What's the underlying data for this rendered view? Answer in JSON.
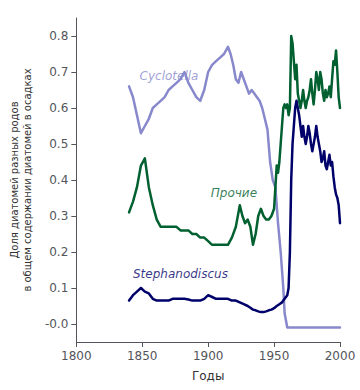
{
  "chart_data": {
    "type": "line",
    "xlabel": "Годы",
    "ylabel": "Доля диатомей разных родов\nв общем содержании диатомей в осадках",
    "xlim": [
      1800,
      2000
    ],
    "ylim": [
      -0.05,
      0.85
    ],
    "xticks": [
      1800,
      1850,
      1900,
      1950,
      2000
    ],
    "yticks": [
      {
        "value": 0.0,
        "label": "-0.0"
      },
      0.1,
      0.2,
      0.3,
      0.4,
      0.5,
      0.6,
      0.7,
      0.8
    ],
    "grid": false,
    "series": [
      {
        "color": "#8888cc",
        "x": [
          1840,
          1843,
          1846,
          1849,
          1852,
          1855,
          1858,
          1861,
          1864,
          1867,
          1870,
          1873,
          1876,
          1879,
          1882,
          1885,
          1888,
          1891,
          1894,
          1897,
          1900,
          1903,
          1906,
          1909,
          1912,
          1915,
          1917,
          1919,
          1921,
          1923,
          1925,
          1927,
          1929,
          1931,
          1933,
          1935,
          1937,
          1939,
          1941,
          1943,
          1945,
          1947,
          1949,
          1951,
          1953,
          1955,
          1957,
          1958,
          1960,
          1965,
          1970,
          1975,
          1980,
          1985,
          1990,
          1995,
          2000
        ],
        "values": [
          0.66,
          0.63,
          0.58,
          0.53,
          0.55,
          0.57,
          0.6,
          0.61,
          0.62,
          0.63,
          0.65,
          0.66,
          0.67,
          0.68,
          0.7,
          0.67,
          0.65,
          0.63,
          0.62,
          0.65,
          0.7,
          0.72,
          0.73,
          0.74,
          0.75,
          0.77,
          0.75,
          0.72,
          0.68,
          0.67,
          0.7,
          0.68,
          0.66,
          0.64,
          0.65,
          0.64,
          0.63,
          0.62,
          0.6,
          0.57,
          0.54,
          0.45,
          0.4,
          0.38,
          0.28,
          0.2,
          0.1,
          0.03,
          -0.01,
          -0.01,
          -0.01,
          -0.01,
          -0.01,
          -0.01,
          -0.01,
          -0.01,
          -0.01
        ]
      },
      {
        "color": "#006030",
        "x": [
          1840,
          1843,
          1846,
          1849,
          1852,
          1855,
          1858,
          1861,
          1864,
          1867,
          1870,
          1873,
          1876,
          1879,
          1882,
          1885,
          1888,
          1891,
          1894,
          1897,
          1900,
          1903,
          1906,
          1909,
          1912,
          1915,
          1918,
          1921,
          1924,
          1926,
          1928,
          1930,
          1932,
          1934,
          1936,
          1938,
          1940,
          1942,
          1944,
          1946,
          1948,
          1950,
          1951,
          1952,
          1953,
          1954,
          1955,
          1956,
          1957,
          1958,
          1959,
          1960,
          1961,
          1962,
          1963,
          1964,
          1965,
          1966,
          1967,
          1968,
          1969,
          1970,
          1971,
          1972,
          1973,
          1974,
          1975,
          1976,
          1977,
          1978,
          1979,
          1980,
          1981,
          1982,
          1983,
          1984,
          1985,
          1986,
          1987,
          1988,
          1989,
          1990,
          1991,
          1992,
          1993,
          1994,
          1995,
          1996,
          1997,
          1998,
          1999,
          2000
        ],
        "values": [
          0.31,
          0.34,
          0.38,
          0.44,
          0.46,
          0.38,
          0.33,
          0.29,
          0.27,
          0.27,
          0.27,
          0.27,
          0.27,
          0.26,
          0.26,
          0.26,
          0.25,
          0.25,
          0.24,
          0.24,
          0.23,
          0.22,
          0.22,
          0.22,
          0.22,
          0.22,
          0.24,
          0.27,
          0.33,
          0.3,
          0.28,
          0.29,
          0.27,
          0.22,
          0.25,
          0.3,
          0.32,
          0.3,
          0.29,
          0.29,
          0.3,
          0.32,
          0.38,
          0.44,
          0.42,
          0.45,
          0.5,
          0.55,
          0.6,
          0.61,
          0.6,
          0.61,
          0.58,
          0.6,
          0.8,
          0.78,
          0.73,
          0.68,
          0.72,
          0.64,
          0.62,
          0.6,
          0.62,
          0.65,
          0.62,
          0.6,
          0.62,
          0.63,
          0.65,
          0.68,
          0.64,
          0.61,
          0.65,
          0.7,
          0.68,
          0.65,
          0.7,
          0.68,
          0.64,
          0.62,
          0.65,
          0.63,
          0.64,
          0.66,
          0.63,
          0.68,
          0.73,
          0.72,
          0.76,
          0.7,
          0.63,
          0.6
        ]
      },
      {
        "color": "#00006a",
        "x": [
          1840,
          1843,
          1846,
          1849,
          1852,
          1855,
          1858,
          1861,
          1864,
          1867,
          1870,
          1873,
          1876,
          1879,
          1882,
          1885,
          1888,
          1891,
          1894,
          1897,
          1900,
          1903,
          1906,
          1909,
          1912,
          1915,
          1918,
          1921,
          1924,
          1927,
          1930,
          1932,
          1934,
          1936,
          1938,
          1940,
          1942,
          1944,
          1946,
          1948,
          1950,
          1952,
          1954,
          1956,
          1957,
          1958,
          1959,
          1960,
          1961,
          1962,
          1963,
          1964,
          1965,
          1966,
          1967,
          1968,
          1969,
          1970,
          1971,
          1972,
          1973,
          1974,
          1975,
          1976,
          1977,
          1978,
          1979,
          1980,
          1981,
          1982,
          1983,
          1984,
          1985,
          1986,
          1987,
          1988,
          1989,
          1990,
          1991,
          1992,
          1993,
          1994,
          1995,
          1996,
          1997,
          1998,
          1999,
          2000
        ],
        "values": [
          0.065,
          0.08,
          0.09,
          0.1,
          0.09,
          0.085,
          0.07,
          0.065,
          0.065,
          0.065,
          0.065,
          0.07,
          0.07,
          0.07,
          0.07,
          0.068,
          0.065,
          0.065,
          0.065,
          0.07,
          0.08,
          0.075,
          0.07,
          0.07,
          0.07,
          0.07,
          0.065,
          0.065,
          0.06,
          0.055,
          0.05,
          0.045,
          0.04,
          0.038,
          0.035,
          0.033,
          0.033,
          0.035,
          0.038,
          0.04,
          0.044,
          0.05,
          0.055,
          0.06,
          0.065,
          0.07,
          0.075,
          0.08,
          0.1,
          0.2,
          0.4,
          0.5,
          0.55,
          0.6,
          0.62,
          0.6,
          0.58,
          0.55,
          0.52,
          0.55,
          0.52,
          0.5,
          0.52,
          0.55,
          0.53,
          0.5,
          0.48,
          0.5,
          0.52,
          0.55,
          0.52,
          0.5,
          0.48,
          0.45,
          0.46,
          0.48,
          0.44,
          0.43,
          0.45,
          0.47,
          0.44,
          0.45,
          0.41,
          0.38,
          0.36,
          0.35,
          0.33,
          0.28
        ]
      }
    ],
    "annotations": [
      {
        "text": "Cyclotella",
        "x": 1848,
        "y": 0.69,
        "color": "#8888cc"
      },
      {
        "text": "Прочие",
        "x": 1902,
        "y": 0.365,
        "color": "#006030"
      },
      {
        "text": "Stephanodiscus",
        "x": 1843,
        "y": 0.14,
        "color": "#00006a"
      }
    ]
  }
}
